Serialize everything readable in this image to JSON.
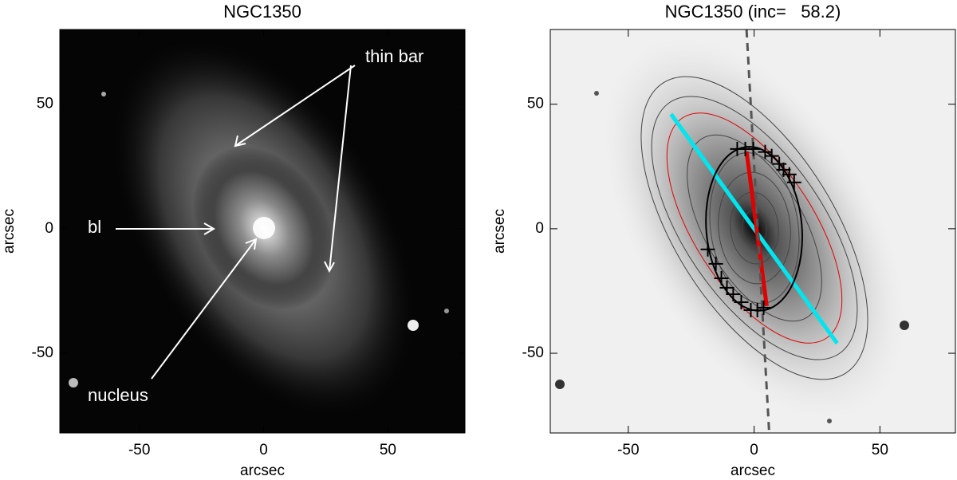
{
  "chart_data": [
    {
      "type": "image",
      "title": "NGC1350",
      "xlabel": "arcsec",
      "ylabel": "arcsec",
      "xlim": [
        -82,
        81
      ],
      "ylim": [
        -82,
        80
      ],
      "xticks": [
        -50,
        0,
        50
      ],
      "yticks": [
        -50,
        0,
        50
      ],
      "annotations": [
        "thin bar",
        "bl",
        "nucleus"
      ]
    },
    {
      "type": "image",
      "title": "NGC1350 (inc=   58.2)",
      "xlabel": "arcsec",
      "ylabel": "arcsec",
      "xlim": [
        -81,
        80
      ],
      "ylim": [
        -82,
        80
      ],
      "xticks": [
        -50,
        0,
        50
      ],
      "yticks": [
        -50,
        0,
        50
      ],
      "lines": [
        {
          "color": "#00e5ee",
          "x": [
            -33,
            33
          ],
          "y": [
            46,
            -46
          ]
        },
        {
          "color": "#e00000",
          "x": [
            -3,
            5
          ],
          "y": [
            31,
            -31
          ]
        },
        {
          "color": "#555555",
          "dashed": true,
          "x": [
            -3,
            6
          ],
          "y": [
            80,
            -82
          ]
        }
      ],
      "ellipse": {
        "color": "#000000",
        "x": 0,
        "y": 0,
        "rx": 19,
        "ry": 33,
        "angle": -5
      },
      "points": {
        "color": "#000000",
        "x": [
          -6.7,
          -3.5,
          -0.3,
          4.4,
          7,
          10,
          11.7,
          14,
          15.9,
          -18.4,
          -15.2,
          -13,
          -10.8,
          -8.3,
          -5.1,
          -1.3,
          1.3,
          3.8
        ],
        "y": [
          32,
          32,
          32,
          30.8,
          29.2,
          26,
          23.7,
          21.8,
          18.6,
          -8.3,
          -14.1,
          -19.9,
          -23.7,
          -26.3,
          -29.5,
          -32.7,
          -32.7,
          -31.7
        ]
      }
    }
  ]
}
